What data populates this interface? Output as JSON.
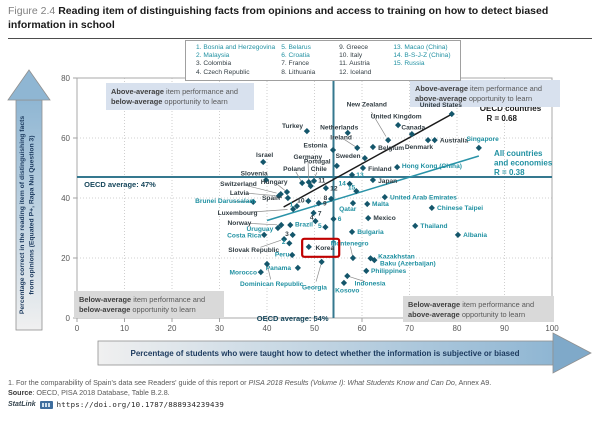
{
  "title": {
    "figure_label": "Figure 2.4",
    "text": "Reading item of distinguishing facts from opinions and access to training on how to detect biased information in school"
  },
  "legend": {
    "columns": [
      [
        {
          "n": "1.",
          "name": "Bosnia and Herzegovina",
          "g": "p"
        },
        {
          "n": "2.",
          "name": "Malaysia",
          "g": "p"
        },
        {
          "n": "3.",
          "name": "Colombia",
          "g": "o"
        },
        {
          "n": "4.",
          "name": "Czech Republic",
          "g": "o"
        }
      ],
      [
        {
          "n": "5.",
          "name": "Belarus",
          "g": "p"
        },
        {
          "n": "6.",
          "name": "Croatia",
          "g": "p"
        },
        {
          "n": "7.",
          "name": "France",
          "g": "o"
        },
        {
          "n": "8.",
          "name": "Lithuania",
          "g": "o"
        }
      ],
      [
        {
          "n": "9.",
          "name": "Greece",
          "g": "o"
        },
        {
          "n": "10.",
          "name": "Italy",
          "g": "o"
        },
        {
          "n": "11.",
          "name": "Austria",
          "g": "o"
        },
        {
          "n": "12.",
          "name": "Iceland",
          "g": "o"
        }
      ],
      [
        {
          "n": "13.",
          "name": "Macao (China)",
          "g": "p"
        },
        {
          "n": "14.",
          "name": "B-S-J-Z (China)",
          "g": "p"
        },
        {
          "n": "15.",
          "name": "Russia",
          "g": "p"
        }
      ]
    ]
  },
  "colors": {
    "marker": "#14566b",
    "oecd_label": "#333e44",
    "partner_label": "#2191a2",
    "avg_line": "#35788f",
    "trend_oecd": "#1a1a1a",
    "trend_all": "#2a93a8",
    "highlight_red": "#c00000",
    "quad_blue_bg": "#d8e1ee",
    "quad_gray_bg": "#d9d9d9",
    "banner_text": "#1c3a5e"
  },
  "chart_data": {
    "type": "scatter",
    "xlabel": "Percentage of students who were taught how to detect whether the information is subjective or biased",
    "ylabel_line1": "Percentage correct in the reading item of distinguishing facts",
    "ylabel_line2": "from opinions (Equated P+, Rapa Nui Question 3)",
    "xlim": [
      0,
      100
    ],
    "ylim": [
      0,
      80
    ],
    "x_ticks": [
      0,
      10,
      20,
      30,
      40,
      50,
      60,
      70,
      80,
      90,
      100
    ],
    "y_ticks": [
      0,
      20,
      40,
      60,
      80
    ],
    "oecd_average_x": {
      "value": 54,
      "label": "OECD average: 54%"
    },
    "oecd_average_y": {
      "value": 47,
      "label": "OECD average: 47%"
    },
    "trend_lines": [
      {
        "name": "oecd-countries-trend",
        "x1": 43.5,
        "y1": 37,
        "x2": 79.3,
        "y2": 68.3,
        "r": 0.68,
        "label_lines": [
          "OECD countries",
          "R = 0.68"
        ],
        "label_x": [
          84.8,
          86.2
        ],
        "label_y": [
          69,
          65.7
        ],
        "group": "o"
      },
      {
        "name": "all-countries-trend",
        "x1": 40,
        "y1": 32.5,
        "x2": 84.6,
        "y2": 54,
        "r": 0.38,
        "label_lines": [
          "All countries",
          "and economies",
          "R = 0.38"
        ],
        "label_x": [
          87.8,
          87.8,
          87.8
        ],
        "label_y": [
          54,
          50.8,
          47.6
        ],
        "group": "p"
      }
    ],
    "quadrant_labels": [
      {
        "pos": "tl",
        "bold1": "Above-average",
        "rest1": " item performance and",
        "bold2": "below-average",
        "rest2": " opportunity to learn",
        "bg": "blue"
      },
      {
        "pos": "tr",
        "bold1": "Above-average",
        "rest1": " item performance and",
        "bold2": "above-average",
        "rest2": " opportunity to learn",
        "bg": "blue"
      },
      {
        "pos": "bl",
        "bold1": "Below-average",
        "rest1": " item performance and",
        "bold2": "below-average",
        "rest2": " opportunity to learn",
        "bg": "gray"
      },
      {
        "pos": "br",
        "bold1": "Below-average",
        "rest1": " item performance and",
        "bold2": "above-average",
        "rest2": " opportunity to learn",
        "bg": "gray"
      }
    ],
    "highlight_box": {
      "country": "Korea",
      "x1": 47.4,
      "y1": 20.4,
      "x2": 55.2,
      "y2": 26.4
    },
    "points": [
      {
        "name": "Turkey",
        "x": 48.4,
        "y": 62.3,
        "lbl": "Turkey",
        "g": "o",
        "lx": 47.6,
        "ly": 64,
        "a": "e"
      },
      {
        "name": "New Zealand",
        "x": 65.5,
        "y": 59.3,
        "lbl": "New Zealand",
        "g": "o",
        "lx": 61,
        "ly": 71.3,
        "a": "m",
        "ldr": true
      },
      {
        "name": "United States",
        "x": 78.9,
        "y": 68,
        "lbl": "United States",
        "g": "o",
        "lx": 76.6,
        "ly": 71,
        "a": "m"
      },
      {
        "name": "United Kingdom",
        "x": 67.6,
        "y": 64.3,
        "lbl": "United Kingdom",
        "g": "o",
        "lx": 67.2,
        "ly": 67.2,
        "a": "m"
      },
      {
        "name": "Canada",
        "x": 70.5,
        "y": 61.3,
        "lbl": "Canada",
        "g": "o",
        "lx": 70.8,
        "ly": 63.6,
        "a": "m"
      },
      {
        "name": "Australia",
        "x": 75.3,
        "y": 59.3,
        "lbl": "Australia",
        "g": "o",
        "lx": 76.4,
        "ly": 59.3,
        "a": "s"
      },
      {
        "name": "Denmark",
        "x": 73.9,
        "y": 59.3,
        "lbl": "Denmark",
        "g": "o",
        "lx": 72,
        "ly": 57,
        "a": "m"
      },
      {
        "name": "Netherlands",
        "x": 57,
        "y": 61.7,
        "lbl": "Netherlands",
        "g": "o",
        "lx": 55.2,
        "ly": 63.5,
        "a": "m"
      },
      {
        "name": "Ireland",
        "x": 59,
        "y": 56.7,
        "lbl": "Ireland",
        "g": "o",
        "lx": 55.6,
        "ly": 60.2,
        "a": "m",
        "ldr": true
      },
      {
        "name": "Belgium",
        "x": 62.3,
        "y": 57,
        "lbl": "Belgium",
        "g": "o",
        "lx": 63.4,
        "ly": 56.8,
        "a": "s"
      },
      {
        "name": "Sweden",
        "x": 60.6,
        "y": 53.3,
        "lbl": "Sweden",
        "g": "o",
        "lx": 59.7,
        "ly": 54,
        "a": "e"
      },
      {
        "name": "Estonia",
        "x": 53.9,
        "y": 56,
        "lbl": "Estonia",
        "g": "o",
        "lx": 52.7,
        "ly": 57.5,
        "a": "e"
      },
      {
        "name": "Portugal",
        "x": 54.7,
        "y": 50.7,
        "lbl": "Portugal",
        "g": "o",
        "lx": 53.4,
        "ly": 52.2,
        "a": "e"
      },
      {
        "name": "Finland",
        "x": 60.2,
        "y": 50,
        "lbl": "Finland",
        "g": "o",
        "lx": 61.3,
        "ly": 49.8,
        "a": "s"
      },
      {
        "name": "Israel",
        "x": 39.2,
        "y": 52,
        "lbl": "Israel",
        "g": "o",
        "lx": 39.5,
        "ly": 54.4,
        "a": "m"
      },
      {
        "name": "Germany",
        "x": 48.8,
        "y": 45.3,
        "lbl": "Germany",
        "g": "o",
        "lx": 48.6,
        "ly": 53.8,
        "a": "m",
        "ldr": true
      },
      {
        "name": "Slovenia",
        "x": 39.8,
        "y": 46,
        "lbl": "Slovenia",
        "g": "o",
        "lx": 37.3,
        "ly": 48.2,
        "a": "m"
      },
      {
        "name": "Poland",
        "x": 47.4,
        "y": 45,
        "lbl": "Poland",
        "g": "o",
        "lx": 45.7,
        "ly": 49.8,
        "a": "m",
        "ldr": true
      },
      {
        "name": "Chile",
        "x": 49.2,
        "y": 44,
        "lbl": "Chile",
        "g": "o",
        "lx": 50.9,
        "ly": 49.8,
        "a": "m",
        "ldr": true
      },
      {
        "name": "Hungary",
        "x": 44.2,
        "y": 42,
        "lbl": "Hungary",
        "g": "o",
        "lx": 41.5,
        "ly": 45.4,
        "a": "m",
        "ldr": true
      },
      {
        "name": "Switzerland",
        "x": 42.9,
        "y": 41.3,
        "lbl": "Switzerland",
        "g": "o",
        "lx": 34,
        "ly": 44.8,
        "a": "m",
        "ldr": true
      },
      {
        "name": "Latvia",
        "x": 42.5,
        "y": 40.7,
        "lbl": "Latvia",
        "g": "o",
        "lx": 34.2,
        "ly": 41.8,
        "a": "m",
        "ldr": true
      },
      {
        "name": "Spain",
        "x": 44.4,
        "y": 40,
        "lbl": "Spain¹",
        "g": "o",
        "lx": 43.2,
        "ly": 40,
        "a": "e"
      },
      {
        "name": "Luxembourg",
        "x": 45.5,
        "y": 36.3,
        "lbl": "Luxembourg",
        "g": "o",
        "lx": 33.8,
        "ly": 35,
        "a": "m",
        "ldr": true
      },
      {
        "name": "Norway",
        "x": 43,
        "y": 31,
        "lbl": "Norway",
        "g": "o",
        "lx": 34.2,
        "ly": 31.7,
        "a": "m",
        "ldr": true
      },
      {
        "name": "Slovak Republic",
        "x": 43.6,
        "y": 26.3,
        "lbl": "Slovak Republic",
        "g": "o",
        "lx": 37.2,
        "ly": 22.8,
        "a": "m",
        "ldr": true
      },
      {
        "name": "Korea",
        "x": 48.8,
        "y": 23.7,
        "lbl": "Korea",
        "g": "o",
        "lx": 50.2,
        "ly": 23.4,
        "a": "s"
      },
      {
        "name": "Japan",
        "x": 62.3,
        "y": 46,
        "lbl": "Japan",
        "g": "o",
        "lx": 63.4,
        "ly": 45.8,
        "a": "s"
      },
      {
        "name": "Mexico",
        "x": 61.3,
        "y": 33.3,
        "lbl": "Mexico",
        "g": "o",
        "lx": 62.4,
        "ly": 33.4,
        "a": "s"
      },
      {
        "name": "Colombia",
        "x": 45.4,
        "y": 27.7,
        "lbl": "3",
        "g": "o",
        "lx": 44.6,
        "ly": 28.1,
        "a": "e"
      },
      {
        "name": "Czech Republic",
        "x": 50.2,
        "y": 32.3,
        "lbl": "4",
        "g": "o",
        "lx": 49.4,
        "ly": 33.6,
        "a": "m"
      },
      {
        "name": "France",
        "x": 49.8,
        "y": 35,
        "lbl": "7",
        "g": "o",
        "lx": 50.7,
        "ly": 34.9,
        "a": "s"
      },
      {
        "name": "Greece",
        "x": 50.9,
        "y": 38.3,
        "lbl": "9",
        "g": "o",
        "lx": 51.8,
        "ly": 38.3,
        "a": "s"
      },
      {
        "name": "Italy",
        "x": 48.7,
        "y": 39,
        "lbl": "10",
        "g": "o",
        "lx": 47.9,
        "ly": 39.2,
        "a": "e"
      },
      {
        "name": "Austria",
        "x": 49.9,
        "y": 45.7,
        "lbl": "11",
        "g": "o",
        "lx": 50.8,
        "ly": 45.9,
        "a": "s"
      },
      {
        "name": "Iceland",
        "x": 52.4,
        "y": 43.3,
        "lbl": "12",
        "g": "o",
        "lx": 53.3,
        "ly": 43.3,
        "a": "s"
      },
      {
        "name": "Lithuania",
        "x": 53.5,
        "y": 39.7,
        "lbl": "8",
        "g": "o",
        "lx": 52.7,
        "ly": 40,
        "a": "e"
      },
      {
        "name": "Bosnia and Herzegovina",
        "x": 46.3,
        "y": 37.3,
        "lbl": "1",
        "g": "p",
        "lx": 45.5,
        "ly": 37.9,
        "a": "e"
      },
      {
        "name": "Malaysia",
        "x": 44.7,
        "y": 24.9,
        "lbl": "2",
        "g": "p",
        "lx": 43.9,
        "ly": 25.4,
        "a": "e"
      },
      {
        "name": "Belarus",
        "x": 52.3,
        "y": 30.3,
        "lbl": "5",
        "g": "p",
        "lx": 51.5,
        "ly": 30.7,
        "a": "e"
      },
      {
        "name": "Croatia",
        "x": 54,
        "y": 33,
        "lbl": "6",
        "g": "p",
        "lx": 54.9,
        "ly": 33,
        "a": "s"
      },
      {
        "name": "Macao (China)",
        "x": 57.9,
        "y": 47.7,
        "lbl": "13",
        "g": "p",
        "lx": 58.8,
        "ly": 47.7,
        "a": "s"
      },
      {
        "name": "B-S-J-Z (China)",
        "x": 57.4,
        "y": 44.7,
        "lbl": "14",
        "g": "p",
        "lx": 56.6,
        "ly": 44.9,
        "a": "e"
      },
      {
        "name": "Russia",
        "x": 58.8,
        "y": 42.3,
        "lbl": "15",
        "g": "p",
        "lx": 57.8,
        "ly": 43.6,
        "a": "m"
      },
      {
        "name": "Brunei Darussalam",
        "x": 37.1,
        "y": 38.7,
        "lbl": "Brunei Darussalam",
        "g": "p",
        "lx": 31.2,
        "ly": 39,
        "a": "m",
        "ldr": true
      },
      {
        "name": "Uruguay",
        "x": 42.3,
        "y": 30,
        "lbl": "Uruguay",
        "g": "p",
        "lx": 38.5,
        "ly": 29.8,
        "a": "m"
      },
      {
        "name": "Brazil",
        "x": 44.9,
        "y": 31,
        "lbl": "Brazil",
        "g": "p",
        "lx": 45.9,
        "ly": 31.2,
        "a": "s"
      },
      {
        "name": "Costa Rica",
        "x": 39.4,
        "y": 27.7,
        "lbl": "Costa Rica",
        "g": "p",
        "lx": 35.2,
        "ly": 27.6,
        "a": "m"
      },
      {
        "name": "Peru",
        "x": 45.3,
        "y": 21,
        "lbl": "Peru",
        "g": "p",
        "lx": 43.2,
        "ly": 21.2,
        "a": "m"
      },
      {
        "name": "Panama",
        "x": 46.5,
        "y": 16.7,
        "lbl": "Panama",
        "g": "p",
        "lx": 42.4,
        "ly": 16.7,
        "a": "m"
      },
      {
        "name": "Morocco",
        "x": 38.7,
        "y": 15.3,
        "lbl": "Morocco",
        "g": "p",
        "lx": 35,
        "ly": 15.2,
        "a": "m"
      },
      {
        "name": "Dominican Republic",
        "x": 40,
        "y": 18,
        "lbl": "Dominican Republic",
        "g": "p",
        "lx": 41,
        "ly": 11.4,
        "a": "m",
        "ldr": true
      },
      {
        "name": "Georgia",
        "x": 51.5,
        "y": 18.7,
        "lbl": "Georgia",
        "g": "p",
        "lx": 50,
        "ly": 10.3,
        "a": "m",
        "ldr": true
      },
      {
        "name": "Kosovo",
        "x": 56.2,
        "y": 11.7,
        "lbl": "Kosovo",
        "g": "p",
        "lx": 56.9,
        "ly": 9.2,
        "a": "m"
      },
      {
        "name": "Indonesia",
        "x": 56.9,
        "y": 14,
        "lbl": "Indonesia",
        "g": "p",
        "lx": 61.7,
        "ly": 11.6,
        "a": "m",
        "ldr": true
      },
      {
        "name": "Philippines",
        "x": 60.9,
        "y": 15.7,
        "lbl": "Philippines",
        "g": "p",
        "lx": 61.9,
        "ly": 15.7,
        "a": "s"
      },
      {
        "name": "Baku (Azerbaijan)",
        "x": 62.6,
        "y": 19.3,
        "lbl": "Baku (Azerbaijan)",
        "g": "p",
        "lx": 63.8,
        "ly": 18.2,
        "a": "s"
      },
      {
        "name": "Kazakhstan",
        "x": 61.8,
        "y": 19.9,
        "lbl": "Kazakhstan",
        "g": "p",
        "lx": 63.4,
        "ly": 20.6,
        "a": "s"
      },
      {
        "name": "Montenegro",
        "x": 58.1,
        "y": 20,
        "lbl": "Montenegro",
        "g": "p",
        "lx": 57.4,
        "ly": 24.9,
        "a": "m",
        "ldr": true
      },
      {
        "name": "Bulgaria",
        "x": 57.9,
        "y": 28.7,
        "lbl": "Bulgaria",
        "g": "p",
        "lx": 59,
        "ly": 28.7,
        "a": "s"
      },
      {
        "name": "Qatar",
        "x": 58.1,
        "y": 38.3,
        "lbl": "Qatar",
        "g": "p",
        "lx": 57,
        "ly": 36.4,
        "a": "m"
      },
      {
        "name": "Malta",
        "x": 61.1,
        "y": 38,
        "lbl": "Malta",
        "g": "p",
        "lx": 62.1,
        "ly": 38,
        "a": "s"
      },
      {
        "name": "United Arab Emirates",
        "x": 64.8,
        "y": 40.3,
        "lbl": "United Arab Emirates",
        "g": "p",
        "lx": 65.9,
        "ly": 40.3,
        "a": "s"
      },
      {
        "name": "Chinese Taipei",
        "x": 74.7,
        "y": 36.7,
        "lbl": "Chinese Taipei",
        "g": "p",
        "lx": 75.8,
        "ly": 36.7,
        "a": "s"
      },
      {
        "name": "Thailand",
        "x": 71.2,
        "y": 30.7,
        "lbl": "Thailand",
        "g": "p",
        "lx": 72.3,
        "ly": 30.7,
        "a": "s"
      },
      {
        "name": "Albania",
        "x": 80.2,
        "y": 27.7,
        "lbl": "Albania",
        "g": "p",
        "lx": 81.3,
        "ly": 27.7,
        "a": "s"
      },
      {
        "name": "Singapore",
        "x": 84.6,
        "y": 56.7,
        "lbl": "Singapore",
        "g": "p",
        "lx": 85.4,
        "ly": 59.8,
        "a": "m"
      },
      {
        "name": "Hong Kong (China)",
        "x": 67.4,
        "y": 50.3,
        "lbl": "Hong Kong (China)",
        "g": "p",
        "lx": 68.4,
        "ly": 50.8,
        "a": "s"
      }
    ]
  },
  "footnotes": {
    "note1_pre": "1. For the comparability of Spain's data see Readers' guide of this report or ",
    "note1_italic": "PISA 2018 Results (Volume I): What Students Know and Can Do",
    "note1_post": ", Annex A9.",
    "source_word": "Source",
    "source_rest": ": OECD, PISA 2018 Database, Table B.2.8.",
    "statlink_word": "StatLink",
    "statlink_url": "https://doi.org/10.1787/888934239439"
  }
}
